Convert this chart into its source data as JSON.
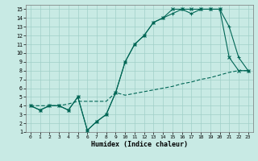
{
  "xlabel": "Humidex (Indice chaleur)",
  "xlim": [
    -0.5,
    23.5
  ],
  "ylim": [
    1,
    15.5
  ],
  "xticks": [
    0,
    1,
    2,
    3,
    4,
    5,
    6,
    7,
    8,
    9,
    10,
    11,
    12,
    13,
    14,
    15,
    16,
    17,
    18,
    19,
    20,
    21,
    22,
    23
  ],
  "yticks": [
    1,
    2,
    3,
    4,
    5,
    6,
    7,
    8,
    9,
    10,
    11,
    12,
    13,
    14,
    15
  ],
  "bg_color": "#c8eae4",
  "grid_color": "#a0cfc8",
  "line_color": "#006655",
  "line1_x": [
    0,
    1,
    2,
    3,
    4,
    5,
    6,
    7,
    8,
    9,
    10,
    11,
    12,
    13,
    14,
    15,
    16,
    17,
    18,
    19,
    20,
    21,
    22,
    23
  ],
  "line1_y": [
    4.0,
    3.5,
    4.0,
    4.0,
    3.5,
    5.0,
    1.2,
    2.2,
    3.0,
    5.5,
    9.0,
    11.0,
    12.0,
    13.5,
    14.0,
    15.0,
    15.0,
    15.0,
    15.0,
    15.0,
    15.0,
    9.5,
    8.0,
    8.0
  ],
  "line2_x": [
    0,
    1,
    2,
    3,
    4,
    5,
    6,
    7,
    8,
    9,
    10,
    11,
    12,
    13,
    14,
    15,
    16,
    17,
    18,
    19,
    20,
    21,
    22,
    23
  ],
  "line2_y": [
    4.0,
    3.5,
    4.0,
    4.0,
    3.5,
    5.0,
    1.2,
    2.2,
    3.0,
    5.5,
    9.0,
    11.0,
    12.0,
    13.5,
    14.0,
    14.5,
    15.0,
    14.5,
    15.0,
    15.0,
    15.0,
    13.0,
    9.5,
    8.0
  ],
  "line3_x": [
    0,
    1,
    2,
    3,
    4,
    5,
    6,
    7,
    8,
    9,
    10,
    11,
    12,
    13,
    14,
    15,
    16,
    17,
    18,
    19,
    20,
    21,
    22,
    23
  ],
  "line3_y": [
    4.0,
    4.0,
    4.0,
    4.0,
    4.2,
    4.5,
    4.5,
    4.5,
    4.5,
    5.5,
    5.2,
    5.4,
    5.6,
    5.8,
    6.0,
    6.2,
    6.5,
    6.7,
    7.0,
    7.2,
    7.5,
    7.8,
    8.0,
    8.0
  ]
}
